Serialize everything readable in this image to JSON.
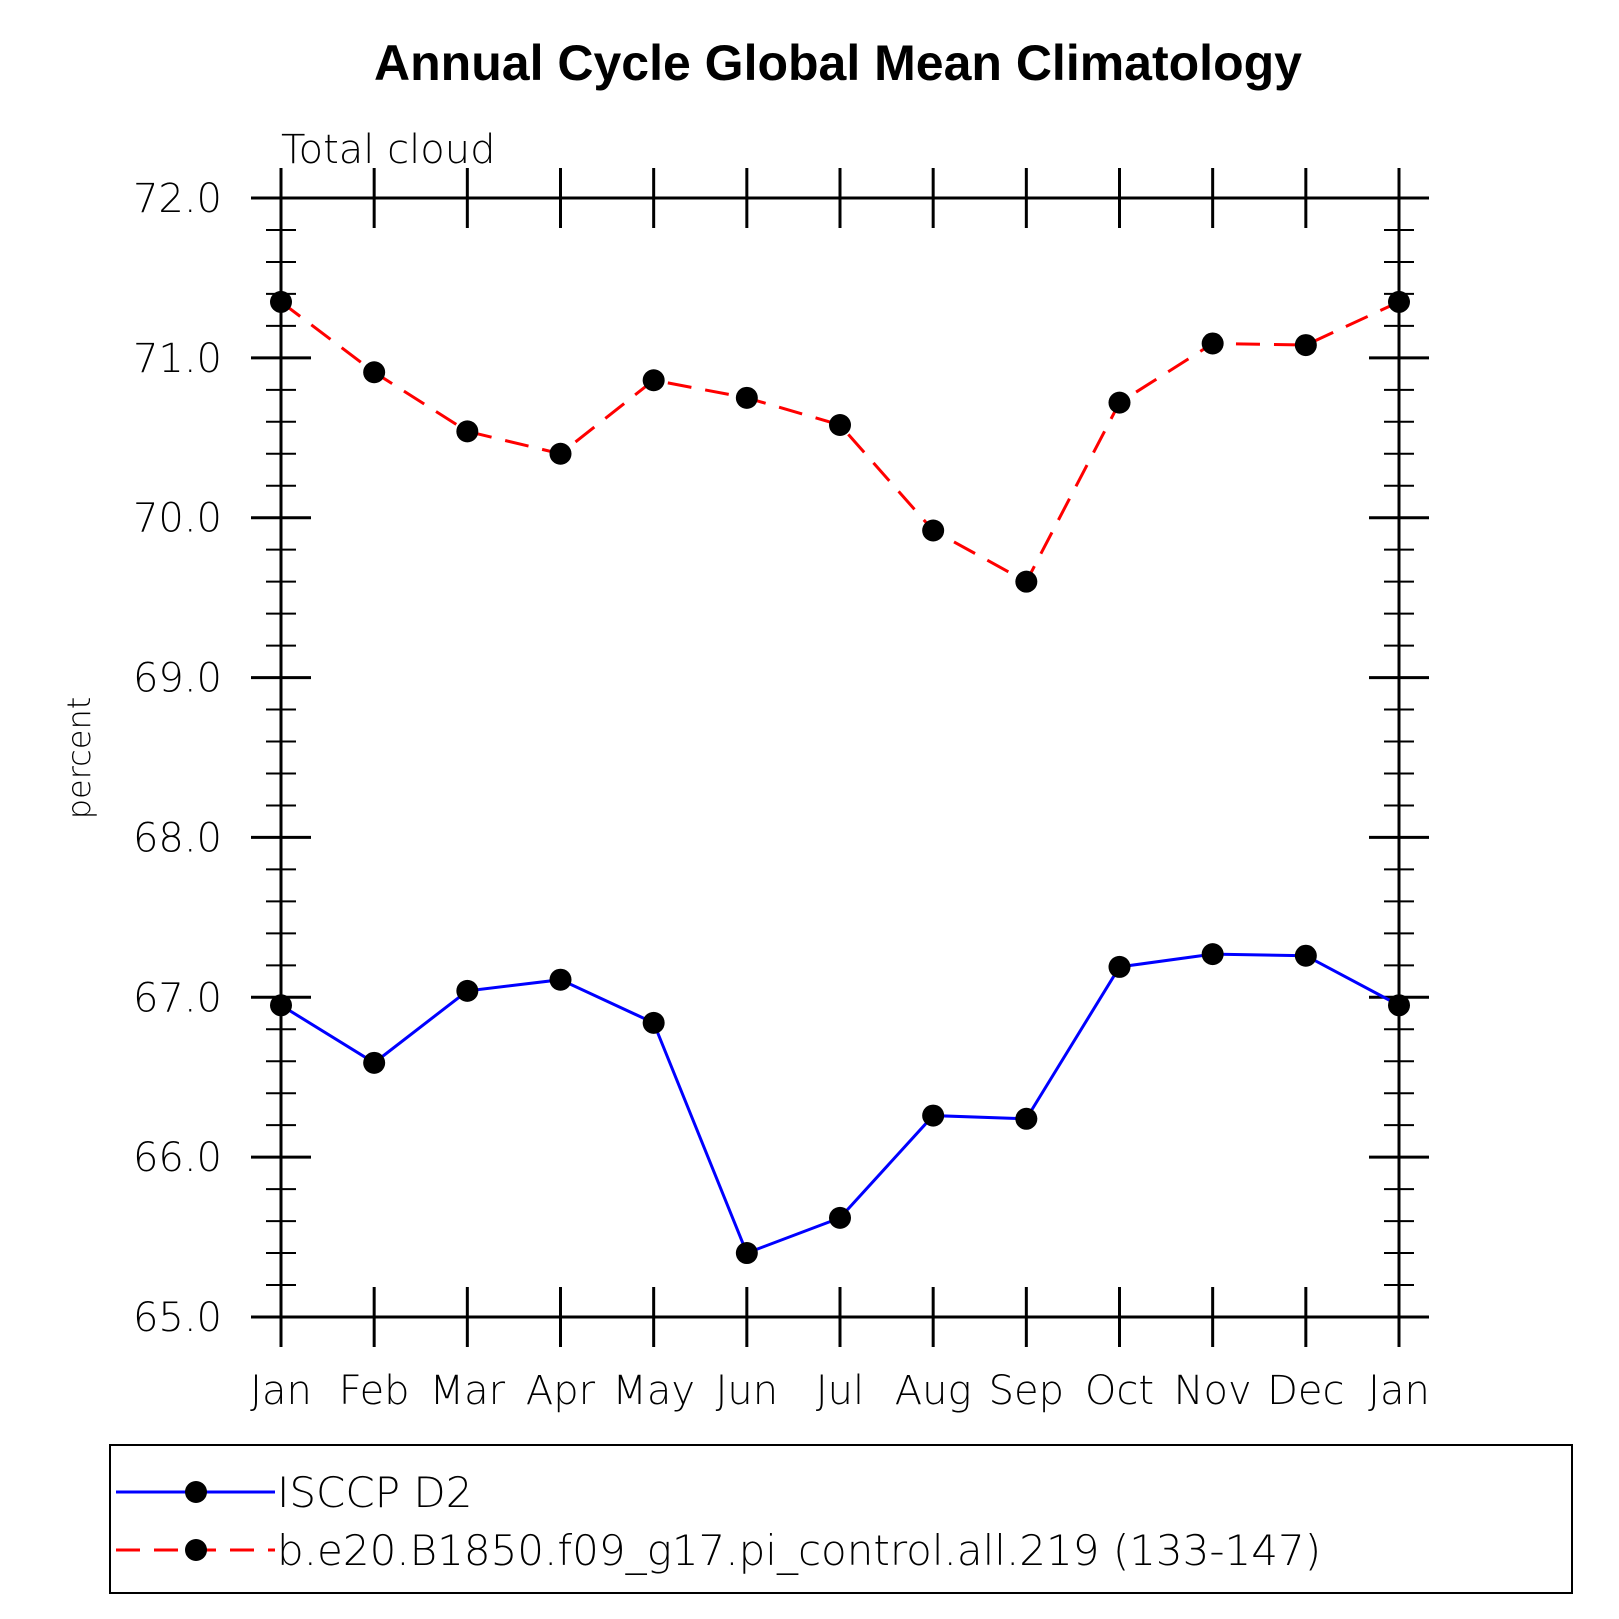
{
  "chart_data": {
    "type": "line",
    "title": "Annual Cycle Global Mean Climatology",
    "subtitle": "Total cloud",
    "xlabel": "",
    "ylabel": "percent",
    "ylim": [
      65.0,
      72.0
    ],
    "y_ticks": [
      "65.0",
      "66.0",
      "67.0",
      "68.0",
      "69.0",
      "70.0",
      "71.0",
      "72.0"
    ],
    "categories": [
      "Jan",
      "Feb",
      "Mar",
      "Apr",
      "May",
      "Jun",
      "Jul",
      "Aug",
      "Sep",
      "Oct",
      "Nov",
      "Dec",
      "Jan"
    ],
    "grid": false,
    "legend_position": "bottom",
    "series": [
      {
        "name": "ISCCP D2",
        "color": "#0000ff",
        "line_style": "solid",
        "marker": "filled-circle",
        "values": [
          66.95,
          66.59,
          67.04,
          67.11,
          66.84,
          65.4,
          65.62,
          66.26,
          66.24,
          67.19,
          67.27,
          67.26,
          66.95
        ]
      },
      {
        "name": "b.e20.B1850.f09_g17.pi_control.all.219 (133-147)",
        "color": "#ff0000",
        "line_style": "dashed",
        "marker": "filled-circle",
        "values": [
          71.35,
          70.91,
          70.54,
          70.4,
          70.86,
          70.75,
          70.58,
          69.92,
          69.6,
          70.72,
          71.09,
          71.08,
          71.35
        ]
      }
    ]
  }
}
